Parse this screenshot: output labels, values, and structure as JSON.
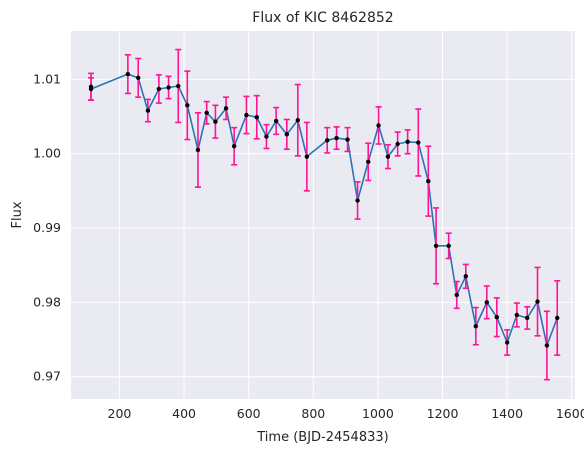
{
  "chart_data": {
    "type": "line",
    "title": "Flux of KIC 8462852",
    "xlabel": "Time (BJD-2454833)",
    "ylabel": "Flux",
    "xlim": [
      50,
      1610
    ],
    "ylim": [
      0.967,
      1.0165
    ],
    "xticks": [
      200,
      400,
      600,
      800,
      1000,
      1200,
      1400,
      1600
    ],
    "xtick_labels": [
      "200",
      "400",
      "600",
      "800",
      "1000",
      "1200",
      "1400",
      "1600"
    ],
    "yticks": [
      0.97,
      0.98,
      0.99,
      1.0,
      1.01
    ],
    "ytick_labels": [
      "0.97",
      "0.98",
      "0.99",
      "1.00",
      "1.01"
    ],
    "grid": true,
    "background": "#eaeaf2",
    "grid_color": "#ffffff",
    "line_color": "#2a74b5",
    "marker_color": "#000000",
    "errorbar_color": "#ff1493",
    "series": [
      {
        "x": [
          112,
          112,
          226,
          258,
          288,
          322,
          352,
          382,
          410,
          443,
          470,
          497,
          530,
          555,
          593,
          625,
          655,
          685,
          718,
          752,
          780,
          843,
          872,
          906,
          937,
          970,
          1002,
          1031,
          1061,
          1092,
          1125,
          1156,
          1180,
          1219,
          1244,
          1272,
          1303,
          1337,
          1368,
          1400,
          1430,
          1462,
          1494,
          1523,
          1555
        ],
        "y": [
          1.009,
          1.0087,
          1.0107,
          1.0102,
          1.0058,
          1.0087,
          1.0089,
          1.0091,
          1.0065,
          1.0005,
          1.0055,
          1.0043,
          1.0061,
          1.001,
          1.0052,
          1.0049,
          1.0023,
          1.0044,
          1.0026,
          1.0045,
          0.9996,
          1.0018,
          1.0021,
          1.0019,
          0.9937,
          0.9989,
          1.0038,
          0.9996,
          1.0013,
          1.0016,
          1.0015,
          0.9963,
          0.9876,
          0.9876,
          0.981,
          0.9835,
          0.9768,
          0.98,
          0.978,
          0.9746,
          0.9783,
          0.9779,
          0.9801,
          0.9742,
          0.9779
        ],
        "yerr": [
          0.0018,
          0.0015,
          0.0026,
          0.0026,
          0.0015,
          0.0019,
          0.0015,
          0.0049,
          0.0046,
          0.005,
          0.0015,
          0.0022,
          0.0015,
          0.0025,
          0.0025,
          0.0029,
          0.0016,
          0.0018,
          0.002,
          0.0048,
          0.0046,
          0.0017,
          0.0015,
          0.0016,
          0.0025,
          0.0025,
          0.0025,
          0.0016,
          0.0016,
          0.0016,
          0.0045,
          0.0047,
          0.0051,
          0.0017,
          0.0018,
          0.0016,
          0.0025,
          0.0022,
          0.0026,
          0.0017,
          0.0016,
          0.0015,
          0.0046,
          0.0046,
          0.005
        ]
      }
    ]
  }
}
